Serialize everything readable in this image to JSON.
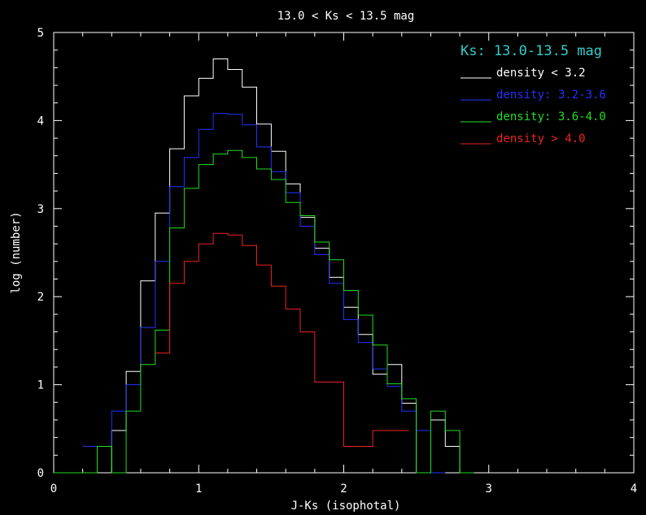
{
  "chart_data": {
    "type": "histogram",
    "title": "13.0 < Ks < 13.5 mag",
    "xlabel": "J-Ks (isophotal)",
    "ylabel": "log (number)",
    "xlim": [
      0,
      4
    ],
    "ylim": [
      0,
      5
    ],
    "x_ticks": [
      "0",
      "1",
      "2",
      "3",
      "4"
    ],
    "y_ticks": [
      "0",
      "1",
      "2",
      "3",
      "4",
      "5"
    ],
    "legend_title": "Ks: 13.0-13.5 mag",
    "legend_title_color": "#33cccc",
    "background": "#000000",
    "axis_color": "#ffffff",
    "series": [
      {
        "name": "density < 3.2",
        "color": "#ffffff",
        "bin_width": 0.1,
        "bins": [
          [
            0.0,
            0
          ],
          [
            0.1,
            0
          ],
          [
            0.2,
            0
          ],
          [
            0.3,
            0
          ],
          [
            0.4,
            0.48
          ],
          [
            0.5,
            1.15
          ],
          [
            0.6,
            2.18
          ],
          [
            0.7,
            2.95
          ],
          [
            0.8,
            3.68
          ],
          [
            0.9,
            4.28
          ],
          [
            1.0,
            4.48
          ],
          [
            1.1,
            4.7
          ],
          [
            1.2,
            4.58
          ],
          [
            1.3,
            4.38
          ],
          [
            1.4,
            3.96
          ],
          [
            1.5,
            3.65
          ],
          [
            1.6,
            3.28
          ],
          [
            1.7,
            2.9
          ],
          [
            1.8,
            2.55
          ],
          [
            1.9,
            2.22
          ],
          [
            2.0,
            1.88
          ],
          [
            2.1,
            1.57
          ],
          [
            2.2,
            1.12
          ],
          [
            2.3,
            1.23
          ],
          [
            2.4,
            0.79
          ],
          [
            2.5,
            0.0
          ],
          [
            2.6,
            0.6
          ],
          [
            2.7,
            0.3
          ],
          [
            2.8,
            0
          ]
        ]
      },
      {
        "name": "density: 3.2-3.6",
        "color": "#2233ff",
        "bin_width": 0.1,
        "bins": [
          [
            0.2,
            0.3
          ],
          [
            0.3,
            0.3
          ],
          [
            0.4,
            0.7
          ],
          [
            0.5,
            1.0
          ],
          [
            0.6,
            1.65
          ],
          [
            0.7,
            2.4
          ],
          [
            0.8,
            3.25
          ],
          [
            0.9,
            3.58
          ],
          [
            1.0,
            3.9
          ],
          [
            1.1,
            4.08
          ],
          [
            1.2,
            4.07
          ],
          [
            1.3,
            3.95
          ],
          [
            1.4,
            3.7
          ],
          [
            1.5,
            3.42
          ],
          [
            1.6,
            3.18
          ],
          [
            1.7,
            2.8
          ],
          [
            1.8,
            2.48
          ],
          [
            1.9,
            2.15
          ],
          [
            2.0,
            1.74
          ],
          [
            2.1,
            1.48
          ],
          [
            2.2,
            1.18
          ],
          [
            2.3,
            0.98
          ],
          [
            2.4,
            0.7
          ],
          [
            2.5,
            0.48
          ],
          [
            2.6,
            0
          ]
        ]
      },
      {
        "name": "density: 3.6-4.0",
        "color": "#22dd22",
        "bin_width": 0.1,
        "bins": [
          [
            0.0,
            0
          ],
          [
            0.3,
            0.3
          ],
          [
            0.4,
            0
          ],
          [
            0.5,
            0.7
          ],
          [
            0.6,
            1.23
          ],
          [
            0.7,
            1.62
          ],
          [
            0.8,
            2.78
          ],
          [
            0.9,
            3.23
          ],
          [
            1.0,
            3.5
          ],
          [
            1.1,
            3.62
          ],
          [
            1.2,
            3.66
          ],
          [
            1.3,
            3.58
          ],
          [
            1.4,
            3.45
          ],
          [
            1.5,
            3.33
          ],
          [
            1.6,
            3.07
          ],
          [
            1.7,
            2.92
          ],
          [
            1.8,
            2.62
          ],
          [
            1.9,
            2.42
          ],
          [
            2.0,
            2.07
          ],
          [
            2.1,
            1.79
          ],
          [
            2.2,
            1.45
          ],
          [
            2.3,
            1.01
          ],
          [
            2.4,
            0.84
          ],
          [
            2.5,
            0.0
          ],
          [
            2.6,
            0.7
          ],
          [
            2.7,
            0.48
          ],
          [
            2.8,
            0
          ]
        ]
      },
      {
        "name": "density > 4.0",
        "color": "#ee2222",
        "bin_width": 0.1,
        "bins": [
          [
            0.7,
            1.36
          ],
          [
            0.8,
            2.15
          ],
          [
            0.9,
            2.4
          ],
          [
            1.0,
            2.6
          ],
          [
            1.1,
            2.72
          ],
          [
            1.2,
            2.7
          ],
          [
            1.3,
            2.58
          ],
          [
            1.4,
            2.36
          ],
          [
            1.5,
            2.12
          ],
          [
            1.6,
            1.86
          ],
          [
            1.7,
            1.6
          ],
          [
            1.8,
            1.03
          ],
          [
            1.9,
            1.03
          ],
          [
            2.0,
            0.3
          ],
          [
            2.1,
            0.3
          ],
          [
            2.2,
            0.48
          ],
          [
            2.3,
            0.48
          ],
          [
            2.35,
            0.48
          ]
        ]
      }
    ]
  }
}
